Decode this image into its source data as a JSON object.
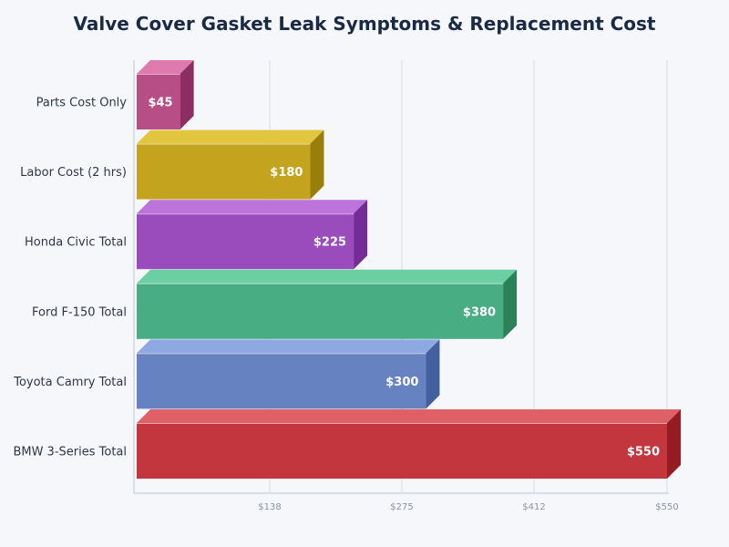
{
  "title": "Valve Cover Gasket Leak Symptoms & Replacement Cost",
  "chart_data": {
    "type": "bar",
    "orientation": "horizontal",
    "title": "Valve Cover Gasket Leak Symptoms & Replacement Cost",
    "xlabel": "",
    "ylabel": "",
    "categories": [
      "Parts Cost Only",
      "Labor Cost (2 hrs)",
      "Honda Civic Total",
      "Ford F-150 Total",
      "Toyota Camry Total",
      "BMW 3-Series Total"
    ],
    "values": [
      45,
      180,
      225,
      380,
      300,
      550
    ],
    "value_labels": [
      "$45",
      "$180",
      "$225",
      "$380",
      "$300",
      "$550"
    ],
    "colors": [
      "#b84e86",
      "#c4a41e",
      "#9a4cbc",
      "#48ad82",
      "#6682c0",
      "#c4363e"
    ],
    "top_colors": [
      "#de7aae",
      "#e2c640",
      "#bd74da",
      "#6ccfa4",
      "#8ea8e2",
      "#e06068"
    ],
    "side_colors": [
      "#8c2e62",
      "#9a7e0a",
      "#742c98",
      "#2c8258",
      "#42609e",
      "#961c24"
    ],
    "xlim": [
      0,
      550
    ],
    "xticks": [
      138,
      275,
      412,
      550
    ],
    "xtick_labels": [
      "$138",
      "$275",
      "$412",
      "$550"
    ],
    "grid": true,
    "legend": null
  }
}
